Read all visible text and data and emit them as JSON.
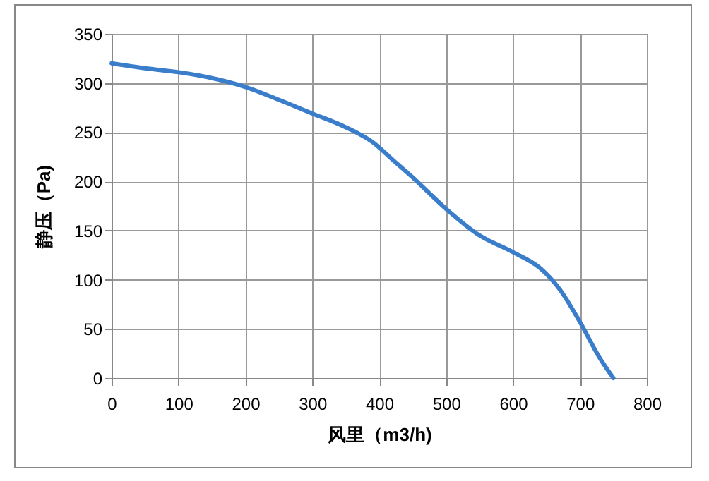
{
  "chart_data": {
    "type": "line",
    "xlabel": "风里（m3/h)",
    "ylabel": "静压（Pa)",
    "x": [
      0,
      50,
      100,
      150,
      200,
      250,
      300,
      350,
      390,
      420,
      450,
      500,
      550,
      600,
      640,
      670,
      700,
      730,
      750
    ],
    "series": [
      {
        "color": "#3a7dcb",
        "values": [
          320,
          315,
          311,
          305,
          296,
          283,
          269,
          255,
          240,
          222,
          204,
          172,
          145,
          128,
          112,
          90,
          57,
          20,
          0
        ]
      }
    ],
    "xlim": [
      0,
      800
    ],
    "xticks": [
      0,
      100,
      200,
      300,
      400,
      500,
      600,
      700,
      800
    ],
    "ylim": [
      0,
      350
    ],
    "yticks": [
      0,
      50,
      100,
      150,
      200,
      250,
      300,
      350
    ],
    "grid": true,
    "marker": "none",
    "line_style": "solid"
  }
}
